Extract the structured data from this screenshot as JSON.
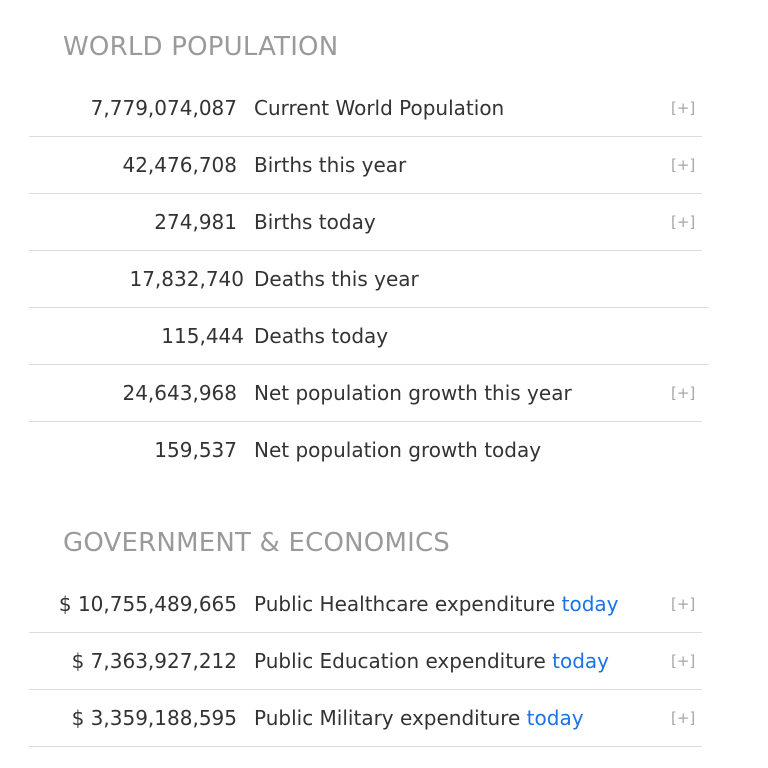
{
  "world_population": {
    "title": "WORLD POPULATION",
    "rows": [
      {
        "value": "7,779,074,087",
        "label": "Current World Population",
        "expander": "[+]"
      },
      {
        "value": "42,476,708",
        "label": "Births this year",
        "expander": "[+]"
      },
      {
        "value": "274,981",
        "label": "Births today",
        "expander": "[+]"
      },
      {
        "value": "17,832,740",
        "label": "Deaths this year"
      },
      {
        "value": "115,444",
        "label": "Deaths today"
      },
      {
        "value": "24,643,968",
        "label": "Net population growth this year",
        "expander": "[+]"
      },
      {
        "value": "159,537",
        "label": "Net population growth today"
      }
    ]
  },
  "government_economics": {
    "title": "GOVERNMENT & ECONOMICS",
    "rows": [
      {
        "value": "$ 10,755,489,665",
        "label": "Public Healthcare expenditure",
        "link": "today",
        "expander": "[+]"
      },
      {
        "value": "$ 7,363,927,212",
        "label": "Public Education expenditure",
        "link": "today",
        "expander": "[+]"
      },
      {
        "value": "$ 3,359,188,595",
        "label": "Public Military expenditure",
        "link": "today",
        "expander": "[+]"
      }
    ]
  },
  "colors": {
    "section_title": "#9a9a9a",
    "text": "#333333",
    "link": "#1a73e8",
    "expander": "#a6a6a6",
    "divider": "#dcdcdc"
  }
}
